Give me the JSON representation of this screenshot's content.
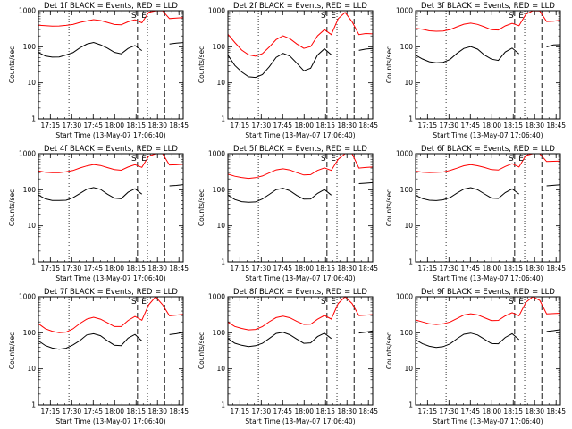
{
  "figure": {
    "background": "#ffffff"
  },
  "chart_data": [
    {
      "type": "line",
      "title": "Det 1f BLACK = Events, RED = LLD",
      "xlabel": "Start Time (13-May-07 17:06:40)",
      "ylabel": "Counts/sec",
      "xlim": [
        "17:06:40",
        "18:48:00"
      ],
      "ylim": [
        1,
        1000
      ],
      "yscale": "log",
      "x_ticks": [
        "17:15",
        "17:30",
        "17:45",
        "18:00",
        "18:15",
        "18:30",
        "18:45"
      ],
      "y_ticks": [
        "1",
        "10",
        "100",
        "1000"
      ],
      "dotted_lines": [
        "17:28",
        "18:23"
      ],
      "dashed_lines": [
        "18:16",
        "18:35"
      ],
      "markers": [
        "S",
        "E"
      ],
      "series": [
        {
          "color": "#ff0000",
          "y": [
            400,
            380,
            370,
            375,
            390,
            420,
            470,
            520,
            560,
            530,
            470,
            420,
            410,
            500,
            560,
            460,
            900,
            1000,
            1000,
            600,
            620,
            640
          ]
        },
        {
          "color": "#000000",
          "y": [
            70,
            55,
            52,
            53,
            58,
            70,
            95,
            120,
            130,
            115,
            90,
            70,
            65,
            90,
            110,
            80,
            0,
            0,
            0,
            120,
            125,
            130
          ]
        }
      ]
    },
    {
      "type": "line",
      "title": "Det 2f BLACK = Events, RED = LLD",
      "xlabel": "Start Time (13-May-07 17:06:40)",
      "ylabel": "Counts/sec",
      "xlim": [
        "17:06:40",
        "18:48:00"
      ],
      "ylim": [
        1,
        1000
      ],
      "yscale": "log",
      "x_ticks": [
        "17:15",
        "17:30",
        "17:45",
        "18:00",
        "18:15",
        "18:30",
        "18:45"
      ],
      "y_ticks": [
        "1",
        "10",
        "100",
        "1000"
      ],
      "dotted_lines": [
        "17:28",
        "18:23"
      ],
      "dashed_lines": [
        "18:16",
        "18:35"
      ],
      "markers": [
        "S",
        "E"
      ],
      "series": [
        {
          "color": "#ff0000",
          "y": [
            220,
            130,
            80,
            60,
            55,
            65,
            100,
            160,
            200,
            170,
            120,
            90,
            100,
            200,
            300,
            220,
            600,
            900,
            500,
            220,
            230,
            230
          ]
        },
        {
          "color": "#000000",
          "y": [
            60,
            30,
            20,
            15,
            14,
            17,
            28,
            50,
            65,
            55,
            35,
            22,
            25,
            60,
            90,
            60,
            0,
            0,
            0,
            80,
            85,
            90
          ]
        }
      ]
    },
    {
      "type": "line",
      "title": "Det 3f BLACK = Events, RED = LLD",
      "xlabel": "Start Time (13-May-07 17:06:40)",
      "ylabel": "Counts/sec",
      "xlim": [
        "17:06:40",
        "18:48:00"
      ],
      "ylim": [
        1,
        1000
      ],
      "yscale": "log",
      "x_ticks": [
        "17:15",
        "17:30",
        "17:45",
        "18:00",
        "18:15",
        "18:30",
        "18:45"
      ],
      "y_ticks": [
        "1",
        "10",
        "100",
        "1000"
      ],
      "dotted_lines": [
        "17:28",
        "18:23"
      ],
      "dashed_lines": [
        "18:16",
        "18:35"
      ],
      "markers": [
        "S",
        "E"
      ],
      "series": [
        {
          "color": "#ff0000",
          "y": [
            320,
            300,
            280,
            270,
            275,
            300,
            360,
            420,
            450,
            420,
            360,
            300,
            290,
            380,
            450,
            380,
            800,
            1000,
            1000,
            500,
            520,
            540
          ]
        },
        {
          "color": "#000000",
          "y": [
            60,
            45,
            38,
            35,
            37,
            45,
            65,
            90,
            100,
            85,
            60,
            45,
            42,
            70,
            90,
            65,
            0,
            0,
            0,
            100,
            110,
            115
          ]
        }
      ]
    },
    {
      "type": "line",
      "title": "Det 4f BLACK = Events, RED = LLD",
      "xlabel": "Start Time (13-May-07 17:06:40)",
      "ylabel": "Counts/sec",
      "xlim": [
        "17:06:40",
        "18:48:00"
      ],
      "ylim": [
        1,
        1000
      ],
      "yscale": "log",
      "x_ticks": [
        "17:15",
        "17:30",
        "17:45",
        "18:00",
        "18:15",
        "18:30",
        "18:45"
      ],
      "y_ticks": [
        "1",
        "10",
        "100",
        "1000"
      ],
      "dotted_lines": [
        "17:28",
        "18:23"
      ],
      "dashed_lines": [
        "18:16",
        "18:35"
      ],
      "markers": [
        "S",
        "E"
      ],
      "series": [
        {
          "color": "#ff0000",
          "y": [
            330,
            310,
            300,
            300,
            310,
            340,
            400,
            460,
            500,
            470,
            410,
            360,
            350,
            430,
            500,
            420,
            850,
            1000,
            1000,
            480,
            500,
            510
          ]
        },
        {
          "color": "#000000",
          "y": [
            70,
            55,
            50,
            50,
            52,
            60,
            80,
            105,
            115,
            100,
            75,
            60,
            58,
            85,
            105,
            75,
            0,
            0,
            0,
            130,
            135,
            140
          ]
        }
      ]
    },
    {
      "type": "line",
      "title": "Det 5f BLACK = Events, RED = LLD",
      "xlabel": "Start Time (13-May-07 17:06:40)",
      "ylabel": "Counts/sec",
      "xlim": [
        "17:06:40",
        "18:48:00"
      ],
      "ylim": [
        1,
        1000
      ],
      "yscale": "log",
      "x_ticks": [
        "17:15",
        "17:30",
        "17:45",
        "18:00",
        "18:15",
        "18:30",
        "18:45"
      ],
      "y_ticks": [
        "1",
        "10",
        "100",
        "1000"
      ],
      "dotted_lines": [
        "17:28",
        "18:23"
      ],
      "dashed_lines": [
        "18:16",
        "18:35"
      ],
      "markers": [
        "S",
        "E"
      ],
      "series": [
        {
          "color": "#ff0000",
          "y": [
            270,
            240,
            220,
            210,
            215,
            240,
            290,
            350,
            380,
            350,
            300,
            260,
            260,
            340,
            410,
            340,
            700,
            1000,
            1000,
            400,
            420,
            430
          ]
        },
        {
          "color": "#000000",
          "y": [
            70,
            55,
            48,
            45,
            47,
            55,
            75,
            100,
            110,
            95,
            70,
            55,
            55,
            80,
            100,
            72,
            0,
            0,
            0,
            150,
            155,
            160
          ]
        }
      ]
    },
    {
      "type": "line",
      "title": "Det 6f BLACK = Events, RED = LLD",
      "xlabel": "Start Time (13-May-07 17:06:40)",
      "ylabel": "Counts/sec",
      "xlim": [
        "17:06:40",
        "18:48:00"
      ],
      "ylim": [
        1,
        1000
      ],
      "yscale": "log",
      "x_ticks": [
        "17:15",
        "17:30",
        "17:45",
        "18:00",
        "18:15",
        "18:30",
        "18:45"
      ],
      "y_ticks": [
        "1",
        "10",
        "100",
        "1000"
      ],
      "dotted_lines": [
        "17:28",
        "18:23"
      ],
      "dashed_lines": [
        "18:16",
        "18:35"
      ],
      "markers": [
        "S",
        "E"
      ],
      "series": [
        {
          "color": "#ff0000",
          "y": [
            330,
            310,
            300,
            300,
            310,
            340,
            400,
            460,
            500,
            470,
            410,
            360,
            350,
            440,
            520,
            430,
            900,
            1000,
            1000,
            600,
            620,
            630
          ]
        },
        {
          "color": "#000000",
          "y": [
            70,
            58,
            52,
            50,
            52,
            60,
            80,
            105,
            115,
            100,
            75,
            60,
            58,
            85,
            105,
            75,
            0,
            0,
            0,
            130,
            135,
            140
          ]
        }
      ]
    },
    {
      "type": "line",
      "title": "Det 7f BLACK = Events, RED = LLD",
      "xlabel": "Start Time (13-May-07 17:06:40)",
      "ylabel": "Counts/sec",
      "xlim": [
        "17:06:40",
        "18:48:00"
      ],
      "ylim": [
        1,
        1000
      ],
      "yscale": "log",
      "x_ticks": [
        "17:15",
        "17:30",
        "17:45",
        "18:00",
        "18:15",
        "18:30",
        "18:45"
      ],
      "y_ticks": [
        "1",
        "10",
        "100",
        "1000"
      ],
      "dotted_lines": [
        "17:28",
        "18:23"
      ],
      "dashed_lines": [
        "18:16",
        "18:35"
      ],
      "markers": [
        "S",
        "E"
      ],
      "series": [
        {
          "color": "#ff0000",
          "y": [
            180,
            130,
            110,
            100,
            105,
            130,
            180,
            240,
            270,
            240,
            190,
            150,
            150,
            220,
            280,
            220,
            600,
            1000,
            600,
            300,
            310,
            320
          ]
        },
        {
          "color": "#000000",
          "y": [
            60,
            45,
            38,
            35,
            37,
            45,
            62,
            85,
            95,
            82,
            60,
            45,
            45,
            70,
            90,
            60,
            0,
            0,
            0,
            90,
            95,
            100
          ]
        }
      ]
    },
    {
      "type": "line",
      "title": "Det 8f BLACK = Events, RED = LLD",
      "xlabel": "Start Time (13-May-07 17:06:40)",
      "ylabel": "Counts/sec",
      "xlim": [
        "17:06:40",
        "18:48:00"
      ],
      "ylim": [
        1,
        1000
      ],
      "yscale": "log",
      "x_ticks": [
        "17:15",
        "17:30",
        "17:45",
        "18:00",
        "18:15",
        "18:30",
        "18:45"
      ],
      "y_ticks": [
        "1",
        "10",
        "100",
        "1000"
      ],
      "dotted_lines": [
        "17:28",
        "18:23"
      ],
      "dashed_lines": [
        "18:16",
        "18:35"
      ],
      "markers": [
        "S",
        "E"
      ],
      "series": [
        {
          "color": "#ff0000",
          "y": [
            200,
            150,
            130,
            120,
            125,
            150,
            200,
            260,
            290,
            260,
            210,
            170,
            170,
            240,
            300,
            240,
            650,
            1000,
            650,
            300,
            310,
            320
          ]
        },
        {
          "color": "#000000",
          "y": [
            70,
            52,
            45,
            42,
            44,
            52,
            70,
            95,
            105,
            90,
            68,
            52,
            52,
            78,
            98,
            68,
            0,
            0,
            0,
            100,
            105,
            110
          ]
        }
      ]
    },
    {
      "type": "line",
      "title": "Det 9f BLACK = Events, RED = LLD",
      "xlabel": "Start Time (13-May-07 17:06:40)",
      "ylabel": "Counts/sec",
      "xlim": [
        "17:06:40",
        "18:48:00"
      ],
      "ylim": [
        1,
        1000
      ],
      "yscale": "log",
      "x_ticks": [
        "17:15",
        "17:30",
        "17:45",
        "18:00",
        "18:15",
        "18:30",
        "18:45"
      ],
      "y_ticks": [
        "1",
        "10",
        "100",
        "1000"
      ],
      "dotted_lines": [
        "17:28",
        "18:23"
      ],
      "dashed_lines": [
        "18:16",
        "18:35"
      ],
      "markers": [
        "S",
        "E"
      ],
      "series": [
        {
          "color": "#ff0000",
          "y": [
            230,
            200,
            180,
            170,
            175,
            200,
            250,
            310,
            340,
            310,
            260,
            220,
            220,
            290,
            360,
            290,
            700,
            1000,
            800,
            330,
            340,
            350
          ]
        },
        {
          "color": "#000000",
          "y": [
            65,
            50,
            42,
            40,
            42,
            50,
            68,
            92,
            100,
            88,
            65,
            50,
            50,
            75,
            95,
            65,
            0,
            0,
            0,
            110,
            115,
            120
          ]
        }
      ]
    }
  ]
}
